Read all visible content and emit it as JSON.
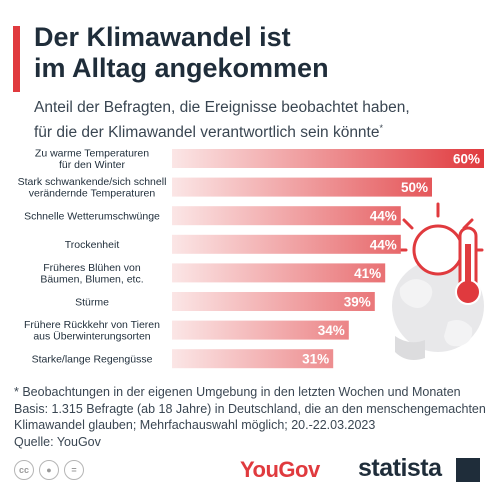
{
  "header": {
    "title_line1": "Der Klimawandel ist",
    "title_line2": "im Alltag angekommen",
    "subtitle_line1": "Anteil der Befragten, die Ereignisse beobachtet haben,",
    "subtitle_line2": "für die der Klimawandel verantwortlich sein könnte",
    "subtitle_marker": "*"
  },
  "chart_data": {
    "type": "bar",
    "orientation": "horizontal",
    "categories": [
      [
        "Zu warme Temperaturen",
        "für den Winter"
      ],
      [
        "Stark schwankende/sich schnell",
        "verändernde Temperaturen"
      ],
      [
        "Schnelle Wetterumschwünge"
      ],
      [
        "Trockenheit"
      ],
      [
        "Früheres Blühen von",
        "Bäumen, Blumen, etc."
      ],
      [
        "Stürme"
      ],
      [
        "Frühere Rückkehr von Tieren",
        "aus Überwinterungsorten"
      ],
      [
        "Starke/lange Regengüsse"
      ]
    ],
    "values": [
      60,
      50,
      44,
      44,
      41,
      39,
      34,
      31
    ],
    "value_labels": [
      "60%",
      "50%",
      "44%",
      "44%",
      "41%",
      "39%",
      "34%",
      "31%"
    ],
    "unit": "%",
    "xlim": [
      0,
      60
    ],
    "bar_color_start": "#fbe6e6",
    "bar_color_end": "#e03a3e"
  },
  "footnote": {
    "line1": "* Beobachtungen in der eigenen Umgebung in den letzten Wochen und Monaten",
    "line2": "Basis: 1.315 Befragte (ab 18 Jahre) in Deutschland, die an den menschengemachten",
    "line3": "Klimawandel glauben; Mehrfachauswahl möglich; 20.-22.03.2023",
    "line4": "Quelle: YouGov"
  },
  "footer": {
    "cc_icons": [
      "cc-icon",
      "by-icon",
      "nd-icon"
    ],
    "yougov_label": "YouGov",
    "statista_label": "statista"
  }
}
